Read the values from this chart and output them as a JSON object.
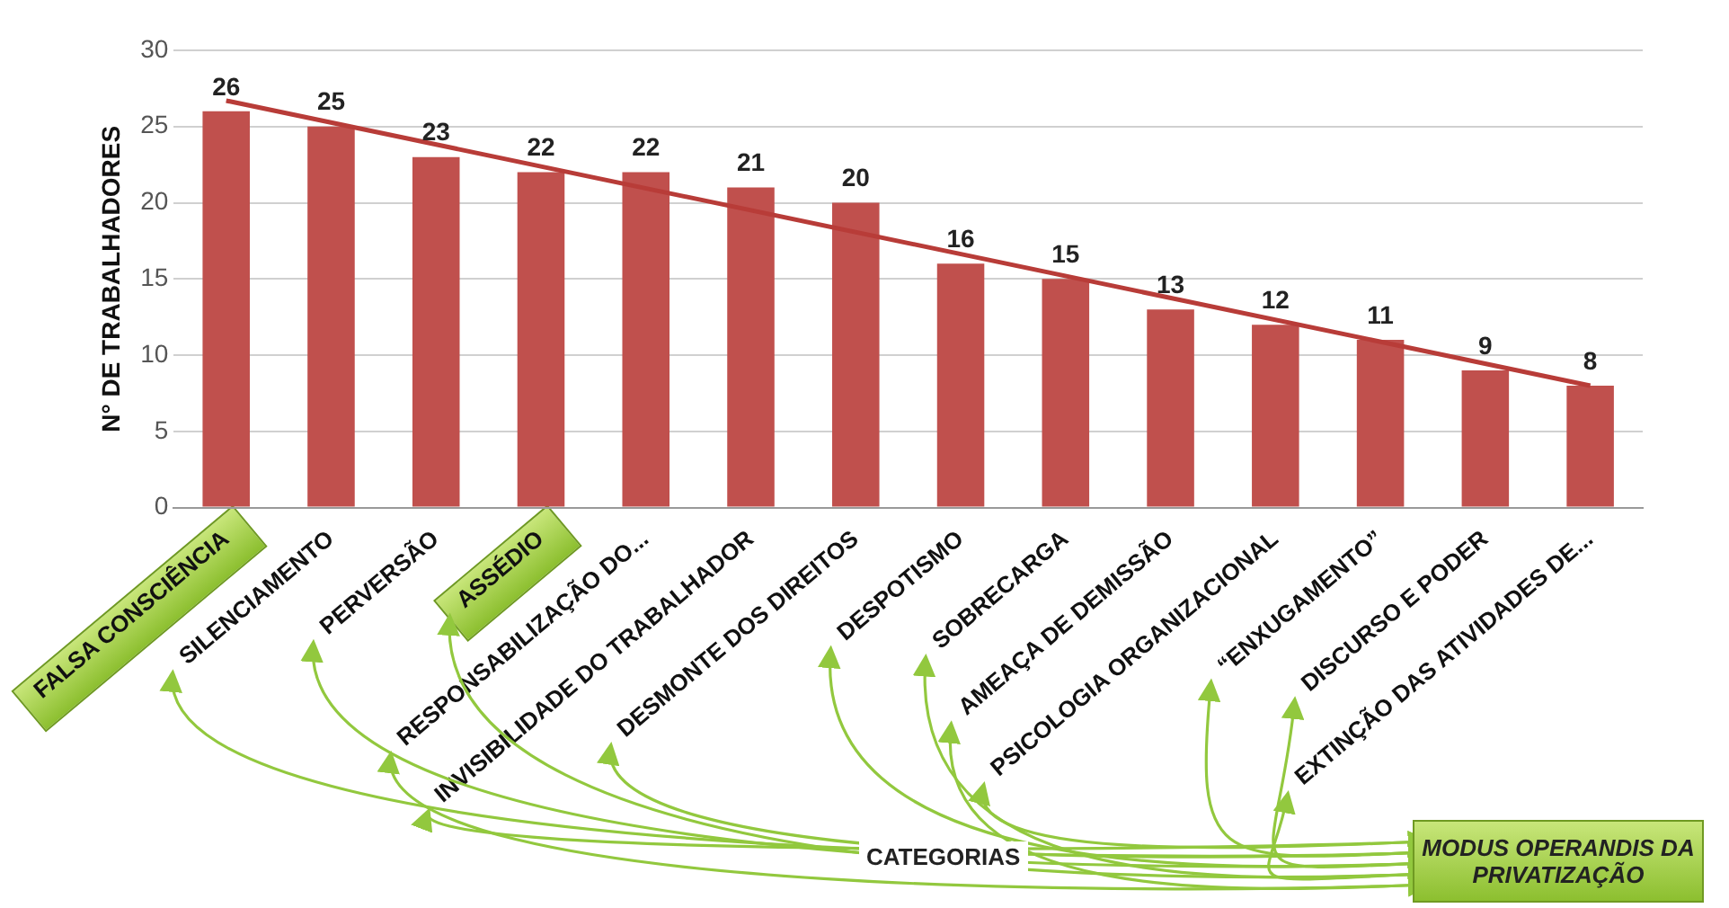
{
  "chart_data": {
    "type": "bar",
    "categories": [
      "FALSA CONSCIÊNCIA",
      "SILENCIAMENTO",
      "PERVERSÃO",
      "ASSÉDIO",
      "RESPONSABILIZAÇÃO DO...",
      "INVISIBILIDADE DO TRABALHADOR",
      "DESMONTE DOS DIREITOS",
      "DESPOTISMO",
      "SOBRECARGA",
      "AMEAÇA DE DEMISSÃO",
      "PSICOLOGIA ORGANIZACIONAL",
      "“ENXUGAMENTO”",
      "DISCURSO E PODER",
      "EXTINÇÃO DAS ATIVIDADES DE..."
    ],
    "series": [
      {
        "color": "#c0504d",
        "values": [
          26,
          25,
          23,
          22,
          22,
          21,
          20,
          16,
          15,
          13,
          12,
          11,
          9,
          8
        ],
        "value_labels": [
          "26",
          "25",
          "23",
          "22",
          "22",
          "21",
          "20",
          "16",
          "15",
          "13",
          "12",
          "11",
          "9",
          "8"
        ]
      },
      {
        "type": "line",
        "x": [
          "FALSA CONSCIÊNCIA",
          "EXTINÇÃO DAS ATIVIDADES DE..."
        ],
        "values": [
          26.7,
          8.0
        ],
        "color": "#b83c38"
      }
    ],
    "ylabel": "N° DE TRABALHADORES",
    "ylim": [
      0,
      30
    ],
    "yticks": [
      0,
      5,
      10,
      15,
      20,
      25,
      30
    ],
    "grid": "y",
    "legend": false,
    "marker": "none",
    "annotations": [
      "CATEGORIAS",
      "MODUS OPERANDIS DA PRIVATIZAÇÃO"
    ]
  }
}
